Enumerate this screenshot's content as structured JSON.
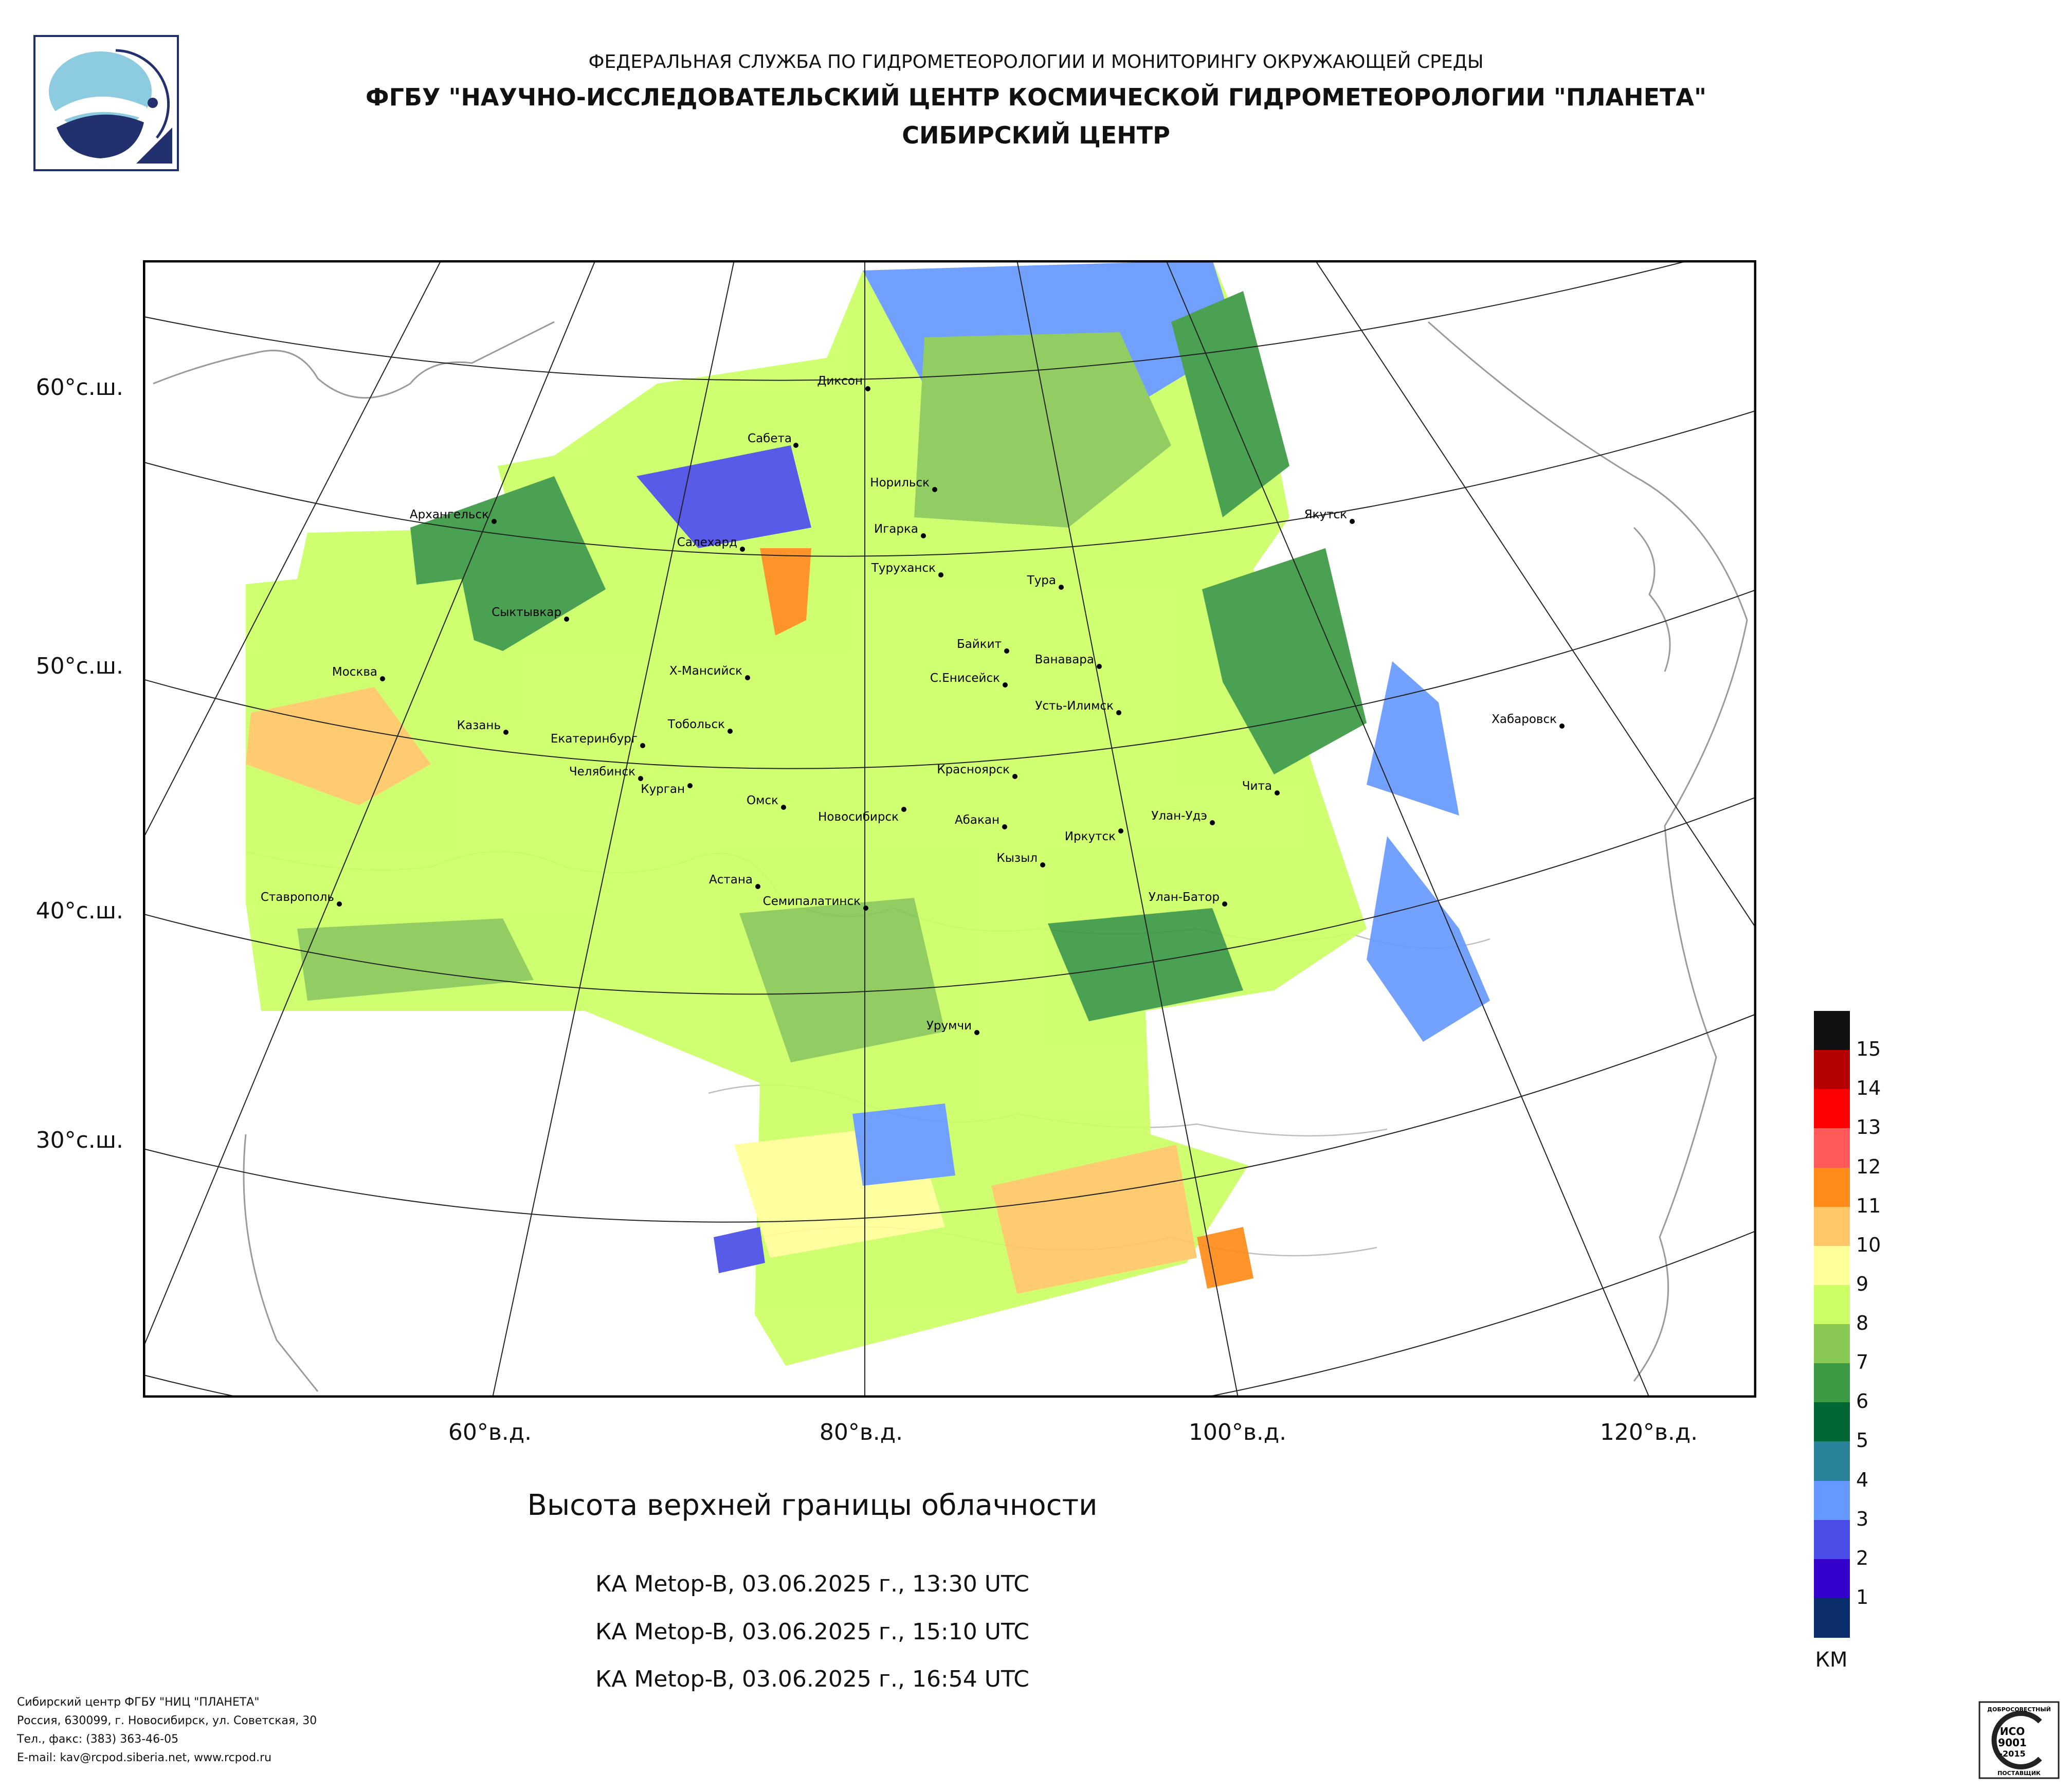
{
  "header": {
    "line1": "ФЕДЕРАЛЬНАЯ СЛУЖБА ПО ГИДРОМЕТЕОРОЛОГИИ И МОНИТОРИНГУ ОКРУЖАЮЩЕЙ СРЕДЫ",
    "line2": "ФГБУ \"НАУЧНО-ИССЛЕДОВАТЕЛЬСКИЙ ЦЕНТР КОСМИЧЕСКОЙ ГИДРОМЕТЕОРОЛОГИИ \"ПЛАНЕТА\"",
    "line3": "СИБИРСКИЙ ЦЕНТР"
  },
  "lat_labels": [
    "60°с.ш.",
    "50°с.ш.",
    "40°с.ш.",
    "30°с.ш."
  ],
  "lon_labels": [
    "60°в.д.",
    "80°в.д.",
    "100°в.д.",
    "120°в.д."
  ],
  "cities": [
    "Диксон",
    "Сабета",
    "Норильск",
    "Архангельск",
    "Салехард",
    "Игарка",
    "Туруханск",
    "Тура",
    "Якутск",
    "Сыктывкар",
    "Байкит",
    "Ванавара",
    "Москва",
    "Х-Мансийск",
    "С.Енисейск",
    "Усть-Илимск",
    "Хабаровск",
    "Казань",
    "Тобольск",
    "Екатеринбург",
    "Челябинск",
    "Курган",
    "Красноярск",
    "Чита",
    "Омск",
    "Новосибирск",
    "Абакан",
    "Улан-Удэ",
    "Иркутск",
    "Кызыл",
    "Астана",
    "Ставрополь",
    "Семипалатинск",
    "Улан-Батор",
    "Урумчи"
  ],
  "title": "Высота верхней границы облачности",
  "passes": [
    "КА Metop-B, 03.06.2025 г., 13:30 UTC",
    "КА Metop-B, 03.06.2025 г., 15:10 UTC",
    "КА Metop-B, 03.06.2025 г., 16:54 UTC"
  ],
  "legend": {
    "unit": "КМ",
    "labels": [
      "15",
      "14",
      "13",
      "12",
      "11",
      "10",
      "9",
      "8",
      "7",
      "6",
      "5",
      "4",
      "3",
      "2",
      "1"
    ],
    "colors": [
      "#111111",
      "#b50000",
      "#ff0000",
      "#ff5a5a",
      "#ff8c1a",
      "#ffc766",
      "#ffff99",
      "#ccff66",
      "#88c955",
      "#3c9a44",
      "#006633",
      "#2a8298",
      "#6699ff",
      "#4a4ee6",
      "#3300cc",
      "#0a2e6b"
    ]
  },
  "footer": {
    "line1": "Сибирский центр ФГБУ \"НИЦ \"ПЛАНЕТА\"",
    "line2": "Россия, 630099, г. Новосибирск, ул. Советская, 30",
    "line3": "Тел., факс: (383) 363-46-05",
    "line4": "E-mail: kav@rcpod.siberia.net, www.rcpod.ru"
  },
  "stamp": {
    "top": "ДОБРОСОВЕСТНЫЙ",
    "mid1": "ИСО",
    "mid2": "9001",
    "mid3": "-2015",
    "bottom": "ПОСТАВЩИК"
  }
}
